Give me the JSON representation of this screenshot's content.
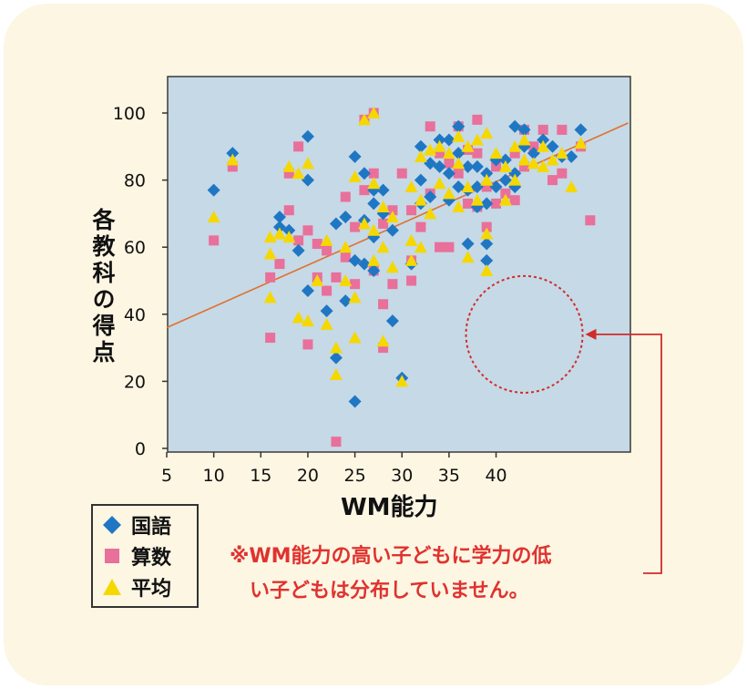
{
  "chart_data": {
    "type": "scatter",
    "xlabel": "WM能力",
    "ylabel": "各教科の得点",
    "x_ticks": [
      5,
      10,
      15,
      20,
      25,
      30,
      35,
      40
    ],
    "y_ticks": [
      0,
      20,
      40,
      60,
      80,
      100
    ],
    "xlim": [
      5,
      55
    ],
    "ylim": [
      0,
      110
    ],
    "grid": false,
    "legend_position": "bottom-left, outside plot",
    "plot_background": "#c6d9e6",
    "series": [
      {
        "name": "国語",
        "marker": "diamond",
        "color": "#1f77c4",
        "points": [
          [
            10,
            77
          ],
          [
            12,
            88
          ],
          [
            17,
            69
          ],
          [
            17,
            66
          ],
          [
            18,
            65
          ],
          [
            19,
            59
          ],
          [
            20,
            93
          ],
          [
            20,
            80
          ],
          [
            20,
            47
          ],
          [
            22,
            41
          ],
          [
            23,
            67
          ],
          [
            23,
            27
          ],
          [
            24,
            69
          ],
          [
            24,
            44
          ],
          [
            25,
            87
          ],
          [
            25,
            56
          ],
          [
            25,
            14
          ],
          [
            26,
            82
          ],
          [
            26,
            68
          ],
          [
            26,
            55
          ],
          [
            27,
            77
          ],
          [
            27,
            73
          ],
          [
            27,
            63
          ],
          [
            27,
            53
          ],
          [
            28,
            77
          ],
          [
            28,
            70
          ],
          [
            29,
            38
          ],
          [
            29,
            65
          ],
          [
            30,
            21
          ],
          [
            31,
            55
          ],
          [
            32,
            90
          ],
          [
            32,
            80
          ],
          [
            32,
            73
          ],
          [
            33,
            85
          ],
          [
            33,
            75
          ],
          [
            34,
            92
          ],
          [
            34,
            84
          ],
          [
            35,
            92
          ],
          [
            35,
            82
          ],
          [
            35,
            74
          ],
          [
            36,
            96
          ],
          [
            36,
            88
          ],
          [
            36,
            78
          ],
          [
            37,
            84
          ],
          [
            37,
            77
          ],
          [
            37,
            61
          ],
          [
            38,
            84
          ],
          [
            38,
            78
          ],
          [
            38,
            72
          ],
          [
            39,
            82
          ],
          [
            39,
            73
          ],
          [
            39,
            61
          ],
          [
            39,
            56
          ],
          [
            40,
            86
          ],
          [
            40,
            78
          ],
          [
            41,
            86
          ],
          [
            41,
            80
          ],
          [
            42,
            96
          ],
          [
            42,
            82
          ],
          [
            42,
            78
          ],
          [
            43,
            95
          ],
          [
            43,
            90
          ],
          [
            44,
            88
          ],
          [
            45,
            92
          ],
          [
            46,
            90
          ],
          [
            47,
            87
          ],
          [
            48,
            87
          ],
          [
            49,
            95
          ]
        ]
      },
      {
        "name": "算数",
        "marker": "square",
        "color": "#e8709a",
        "points": [
          [
            10,
            62
          ],
          [
            12,
            84
          ],
          [
            16,
            51
          ],
          [
            16,
            33
          ],
          [
            17,
            55
          ],
          [
            18,
            71
          ],
          [
            18,
            82
          ],
          [
            19,
            62
          ],
          [
            19,
            90
          ],
          [
            20,
            65
          ],
          [
            20,
            31
          ],
          [
            21,
            61
          ],
          [
            21,
            51
          ],
          [
            22,
            59
          ],
          [
            22,
            47
          ],
          [
            23,
            51
          ],
          [
            23,
            2
          ],
          [
            24,
            57
          ],
          [
            24,
            75
          ],
          [
            25,
            66
          ],
          [
            25,
            49
          ],
          [
            26,
            98
          ],
          [
            26,
            77
          ],
          [
            27,
            100
          ],
          [
            27,
            82
          ],
          [
            27,
            53
          ],
          [
            28,
            67
          ],
          [
            28,
            43
          ],
          [
            28,
            30
          ],
          [
            29,
            71
          ],
          [
            29,
            49
          ],
          [
            30,
            82
          ],
          [
            31,
            71
          ],
          [
            31,
            56
          ],
          [
            31,
            50
          ],
          [
            32,
            66
          ],
          [
            33,
            96
          ],
          [
            33,
            76
          ],
          [
            34,
            88
          ],
          [
            34,
            60
          ],
          [
            35,
            85
          ],
          [
            35,
            60
          ],
          [
            36,
            96
          ],
          [
            36,
            82
          ],
          [
            37,
            89
          ],
          [
            37,
            73
          ],
          [
            38,
            98
          ],
          [
            38,
            88
          ],
          [
            38,
            72
          ],
          [
            39,
            78
          ],
          [
            39,
            66
          ],
          [
            40,
            84
          ],
          [
            40,
            73
          ],
          [
            41,
            76
          ],
          [
            42,
            88
          ],
          [
            42,
            74
          ],
          [
            43,
            95
          ],
          [
            43,
            84
          ],
          [
            44,
            90
          ],
          [
            45,
            95
          ],
          [
            46,
            80
          ],
          [
            47,
            95
          ],
          [
            47,
            82
          ],
          [
            49,
            90
          ],
          [
            50,
            68
          ]
        ]
      },
      {
        "name": "平均",
        "marker": "triangle",
        "color": "#f5d800",
        "points": [
          [
            10,
            69
          ],
          [
            12,
            86
          ],
          [
            16,
            63
          ],
          [
            16,
            58
          ],
          [
            16,
            45
          ],
          [
            17,
            64
          ],
          [
            18,
            84
          ],
          [
            18,
            63
          ],
          [
            19,
            82
          ],
          [
            19,
            39
          ],
          [
            20,
            85
          ],
          [
            20,
            38
          ],
          [
            21,
            50
          ],
          [
            22,
            62
          ],
          [
            22,
            37
          ],
          [
            23,
            30
          ],
          [
            23,
            22
          ],
          [
            24,
            60
          ],
          [
            24,
            50
          ],
          [
            25,
            81
          ],
          [
            25,
            45
          ],
          [
            25,
            33
          ],
          [
            26,
            98
          ],
          [
            26,
            67
          ],
          [
            27,
            100
          ],
          [
            27,
            79
          ],
          [
            27,
            65
          ],
          [
            27,
            56
          ],
          [
            28,
            72
          ],
          [
            28,
            60
          ],
          [
            28,
            32
          ],
          [
            29,
            69
          ],
          [
            29,
            54
          ],
          [
            30,
            20
          ],
          [
            31,
            78
          ],
          [
            31,
            62
          ],
          [
            31,
            56
          ],
          [
            32,
            87
          ],
          [
            32,
            74
          ],
          [
            32,
            60
          ],
          [
            33,
            89
          ],
          [
            33,
            70
          ],
          [
            34,
            90
          ],
          [
            34,
            79
          ],
          [
            35,
            88
          ],
          [
            35,
            76
          ],
          [
            36,
            93
          ],
          [
            36,
            85
          ],
          [
            36,
            72
          ],
          [
            37,
            90
          ],
          [
            37,
            78
          ],
          [
            37,
            57
          ],
          [
            38,
            92
          ],
          [
            38,
            74
          ],
          [
            39,
            94
          ],
          [
            39,
            80
          ],
          [
            39,
            64
          ],
          [
            39,
            53
          ],
          [
            40,
            88
          ],
          [
            41,
            84
          ],
          [
            41,
            74
          ],
          [
            42,
            90
          ],
          [
            42,
            80
          ],
          [
            43,
            92
          ],
          [
            43,
            86
          ],
          [
            44,
            85
          ],
          [
            45,
            90
          ],
          [
            45,
            84
          ],
          [
            46,
            86
          ],
          [
            47,
            88
          ],
          [
            48,
            78
          ],
          [
            49,
            91
          ]
        ]
      }
    ],
    "trendline": {
      "from": [
        5,
        36
      ],
      "to": [
        55,
        97
      ],
      "color": "#e07030"
    },
    "annotation": {
      "shape": "dashed-circle",
      "center": [
        43,
        34
      ],
      "color": "#d12b2b"
    }
  },
  "legend": {
    "items": [
      {
        "label": "国語",
        "color": "#1f77c4",
        "icon": "diamond-icon"
      },
      {
        "label": "算数",
        "color": "#e8709a",
        "icon": "square-icon"
      },
      {
        "label": "平均",
        "color": "#f5d800",
        "icon": "triangle-icon"
      }
    ]
  },
  "note": {
    "line1": "※WM能力の高い子どもに学力の低",
    "line2": "い子どもは分布していません。",
    "color": "#e0322f"
  }
}
